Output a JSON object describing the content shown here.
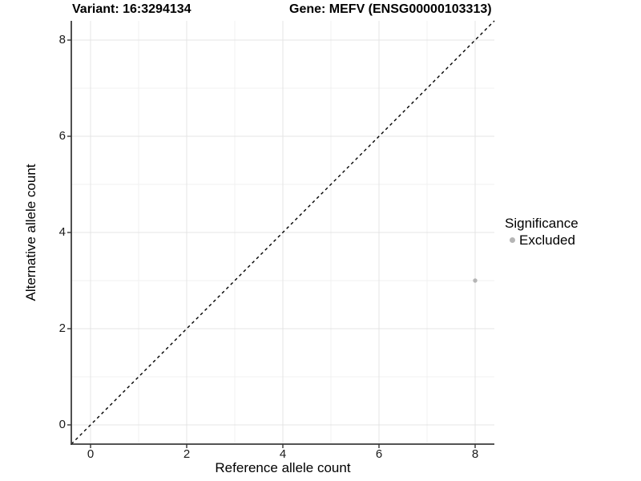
{
  "titles": {
    "variant": "Variant: 16:3294134",
    "gene": "Gene: MEFV (ENSG00000103313)"
  },
  "chart_data": {
    "type": "scatter",
    "xlabel": "Reference allele count",
    "ylabel": "Alternative allele count",
    "xlim": [
      -0.4,
      8.4
    ],
    "ylim": [
      -0.4,
      8.4
    ],
    "x_major_ticks": [
      0,
      2,
      4,
      6,
      8
    ],
    "y_major_ticks": [
      0,
      2,
      4,
      6,
      8
    ],
    "x_minor_ticks": [
      1,
      3,
      5,
      7
    ],
    "y_minor_ticks": [
      1,
      3,
      5,
      7
    ],
    "grid": "major-and-minor",
    "series": [
      {
        "name": "Excluded",
        "color": "#b5b5b5",
        "point_radius": 2.7,
        "points": [
          {
            "x": 8,
            "y": 3
          }
        ]
      }
    ],
    "reference_line": {
      "kind": "identity",
      "slope": 1,
      "intercept": 0,
      "style": "dashed",
      "color": "#000000"
    },
    "legend": {
      "title": "Significance",
      "position": "right",
      "items": [
        {
          "label": "Excluded",
          "color": "#b5b5b5"
        }
      ]
    }
  },
  "colors": {
    "background": "#ffffff",
    "grid_major": "#e4e4e4",
    "grid_minor": "#f1f1f1",
    "axis_line": "#3c3c3c",
    "tick_mark": "#333333",
    "text": "#000000"
  }
}
